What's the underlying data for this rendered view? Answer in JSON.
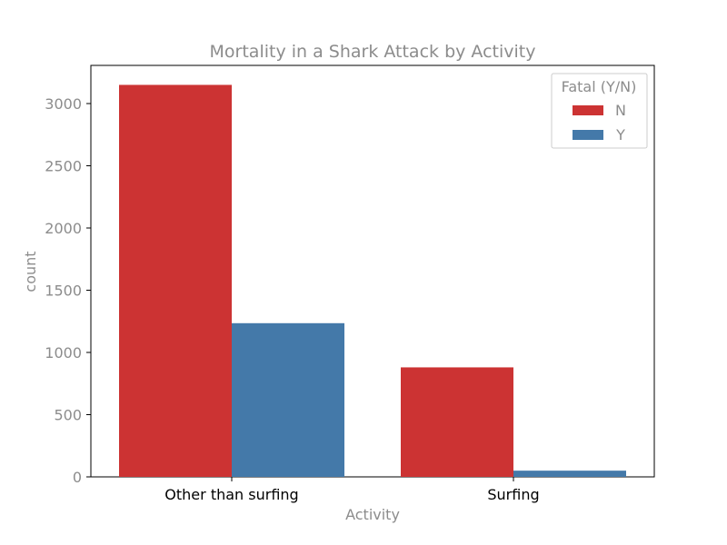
{
  "chart_data": {
    "type": "bar",
    "title": "Mortality in a Shark Attack by Activity",
    "xlabel": "Activity",
    "ylabel": "count",
    "categories": [
      "Other than surfing",
      "Surfing"
    ],
    "series": [
      {
        "name": "N",
        "color": "#cc3333",
        "values": [
          3150,
          880
        ]
      },
      {
        "name": "Y",
        "color": "#4479a9",
        "values": [
          1235,
          50
        ]
      }
    ],
    "ylim": [
      0,
      3300
    ],
    "yticks": [
      0,
      500,
      1000,
      1500,
      2000,
      2500,
      3000
    ],
    "legend": {
      "title": "Fatal (Y/N)",
      "position": "top-right"
    },
    "grid": false
  }
}
